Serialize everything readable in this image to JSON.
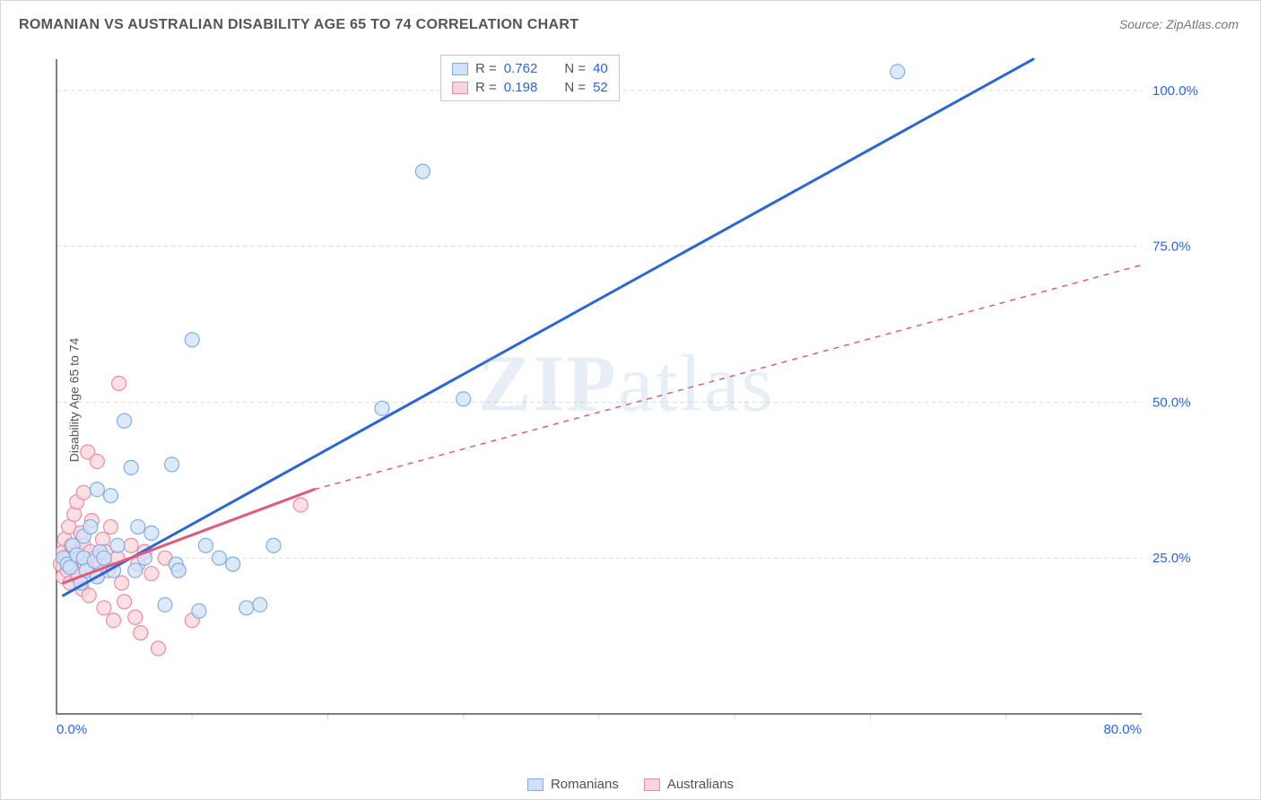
{
  "title": "ROMANIAN VS AUSTRALIAN DISABILITY AGE 65 TO 74 CORRELATION CHART",
  "source": "Source: ZipAtlas.com",
  "ylabel": "Disability Age 65 to 74",
  "watermark": "ZIPatlas",
  "chart": {
    "type": "scatter",
    "background_color": "#ffffff",
    "grid_color": "#d9d9d9",
    "axis_color": "#555555",
    "tick_label_color": "#2a66d8",
    "tick_fontsize": 15,
    "marker_radius": 8,
    "marker_stroke_width": 1.2,
    "line_width_solid": 3,
    "line_width_dash": 1.5,
    "dash_pattern": "6,6",
    "xlim": [
      0,
      80
    ],
    "ylim": [
      0,
      105
    ],
    "x_ticks": [
      0,
      10,
      20,
      30,
      40,
      50,
      60,
      70,
      80
    ],
    "x_tick_labels": {
      "0": "0.0%",
      "80": "80.0%"
    },
    "y_ticks": [
      25,
      50,
      75,
      100
    ],
    "y_tick_labels": {
      "25": "25.0%",
      "50": "50.0%",
      "75": "75.0%",
      "100": "100.0%"
    },
    "series": [
      {
        "id": "romanians",
        "name": "Romanians",
        "fill": "#cfe2f7",
        "stroke": "#7fb0e3",
        "line_color": "#2a66d8",
        "R": "0.762",
        "N": "40",
        "trend_solid": [
          [
            0.5,
            19
          ],
          [
            72,
            105
          ]
        ],
        "trend_dash": null,
        "points": [
          [
            0.5,
            25
          ],
          [
            0.8,
            24
          ],
          [
            1,
            23.5
          ],
          [
            1.2,
            27
          ],
          [
            1.5,
            25.5
          ],
          [
            1.8,
            21
          ],
          [
            2,
            28.5
          ],
          [
            2,
            25
          ],
          [
            2.2,
            23
          ],
          [
            2.5,
            30
          ],
          [
            2.8,
            24.5
          ],
          [
            3,
            36
          ],
          [
            3,
            22
          ],
          [
            3.2,
            26
          ],
          [
            3.5,
            25
          ],
          [
            4,
            35
          ],
          [
            4.2,
            23
          ],
          [
            4.5,
            27
          ],
          [
            5,
            47
          ],
          [
            5.5,
            39.5
          ],
          [
            5.8,
            23
          ],
          [
            6,
            30
          ],
          [
            6.5,
            25
          ],
          [
            7,
            29
          ],
          [
            8,
            17.5
          ],
          [
            8.5,
            40
          ],
          [
            8.8,
            24
          ],
          [
            9,
            23
          ],
          [
            10,
            60
          ],
          [
            10.5,
            16.5
          ],
          [
            11,
            27
          ],
          [
            12,
            25
          ],
          [
            13,
            24
          ],
          [
            14,
            17
          ],
          [
            15,
            17.5
          ],
          [
            16,
            27
          ],
          [
            24,
            49
          ],
          [
            27,
            87
          ],
          [
            30,
            50.5
          ],
          [
            62,
            103
          ]
        ]
      },
      {
        "id": "australians",
        "name": "Australians",
        "fill": "#f9d4db",
        "stroke": "#e98ea2",
        "line_color": "#e05a7c",
        "R": "0.198",
        "N": "52",
        "trend_solid": [
          [
            0.5,
            21
          ],
          [
            19,
            36
          ]
        ],
        "trend_dash": [
          [
            19,
            36
          ],
          [
            80,
            72
          ]
        ],
        "points": [
          [
            0.3,
            24
          ],
          [
            0.5,
            26
          ],
          [
            0.5,
            22
          ],
          [
            0.6,
            28
          ],
          [
            0.7,
            25
          ],
          [
            0.8,
            23
          ],
          [
            0.9,
            30
          ],
          [
            1,
            25.5
          ],
          [
            1,
            21
          ],
          [
            1.1,
            27
          ],
          [
            1.2,
            24
          ],
          [
            1.3,
            32
          ],
          [
            1.4,
            23.5
          ],
          [
            1.5,
            26
          ],
          [
            1.5,
            34
          ],
          [
            1.6,
            22
          ],
          [
            1.7,
            25
          ],
          [
            1.8,
            29
          ],
          [
            1.9,
            20
          ],
          [
            2,
            27
          ],
          [
            2,
            35.5
          ],
          [
            2.1,
            24
          ],
          [
            2.2,
            23
          ],
          [
            2.3,
            42
          ],
          [
            2.4,
            19
          ],
          [
            2.5,
            26
          ],
          [
            2.6,
            31
          ],
          [
            2.8,
            25
          ],
          [
            3,
            22
          ],
          [
            3,
            40.5
          ],
          [
            3.2,
            24
          ],
          [
            3.4,
            28
          ],
          [
            3.5,
            17
          ],
          [
            3.6,
            26
          ],
          [
            3.8,
            23
          ],
          [
            4,
            30
          ],
          [
            4.2,
            15
          ],
          [
            4.5,
            25
          ],
          [
            4.6,
            53
          ],
          [
            4.8,
            21
          ],
          [
            5,
            18
          ],
          [
            5.5,
            27
          ],
          [
            5.8,
            15.5
          ],
          [
            6,
            24
          ],
          [
            6.2,
            13
          ],
          [
            6.5,
            26
          ],
          [
            7,
            22.5
          ],
          [
            7.5,
            10.5
          ],
          [
            8,
            25
          ],
          [
            9,
            23
          ],
          [
            10,
            15
          ],
          [
            18,
            33.5
          ]
        ]
      }
    ]
  },
  "stat_legend": {
    "r_prefix": "R =",
    "n_prefix": "N ="
  },
  "series_legend_labels": {
    "romanians": "Romanians",
    "australians": "Australians"
  }
}
